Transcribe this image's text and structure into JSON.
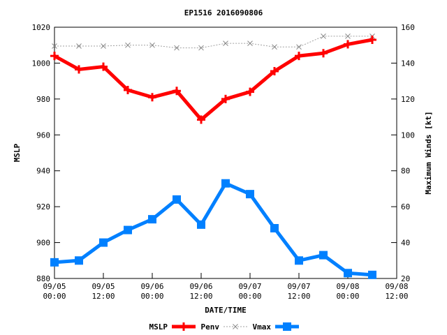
{
  "chart_data": {
    "type": "line",
    "title": "EP1516 2016090806",
    "xlabel": "DATE/TIME",
    "ylabel_left": "MSLP",
    "ylabel_right": "Maximum Winds [kt]",
    "x_ticks": [
      {
        "date": "09/05",
        "time": "00:00"
      },
      {
        "date": "09/05",
        "time": "12:00"
      },
      {
        "date": "09/06",
        "time": "00:00"
      },
      {
        "date": "09/06",
        "time": "12:00"
      },
      {
        "date": "09/07",
        "time": "00:00"
      },
      {
        "date": "09/07",
        "time": "12:00"
      },
      {
        "date": "09/08",
        "time": "00:00"
      },
      {
        "date": "09/08",
        "time": "12:00"
      }
    ],
    "x_hours": [
      0,
      6,
      12,
      18,
      24,
      30,
      36,
      42,
      48,
      54,
      60,
      66,
      72,
      78
    ],
    "xlim_hours": [
      0,
      84
    ],
    "ylim_left": [
      880,
      1020
    ],
    "yticks_left": [
      880,
      900,
      920,
      940,
      960,
      980,
      1000,
      1020
    ],
    "ylim_right": [
      20,
      160
    ],
    "yticks_right": [
      20,
      40,
      60,
      80,
      100,
      120,
      140,
      160
    ],
    "series": [
      {
        "name": "MSLP",
        "legend_label": "MSLP",
        "axis": "left",
        "color": "#ff0000",
        "values": [
          1004,
          996.5,
          998,
          985,
          981,
          984.5,
          968.5,
          980,
          984,
          995.5,
          1004,
          1005.5,
          1010.5,
          1013
        ]
      },
      {
        "name": "Penv",
        "legend_label": "Penv",
        "axis": "left",
        "color": "#a0a0a0",
        "values": [
          1009.5,
          1009.5,
          1009.5,
          1010,
          1010,
          1008.5,
          1008.5,
          1011,
          1011,
          1009,
          1009,
          1015,
          1015,
          1015
        ]
      },
      {
        "name": "Vmax",
        "legend_label": "Vmax",
        "axis": "right",
        "color": "#0080ff",
        "values": [
          29,
          30,
          40,
          47,
          53,
          64,
          50,
          73,
          67,
          48,
          30,
          33,
          23,
          22
        ]
      }
    ],
    "legend": {
      "placement": "bottom",
      "labels": [
        "MSLP",
        "Penv",
        "Vmax"
      ]
    }
  }
}
